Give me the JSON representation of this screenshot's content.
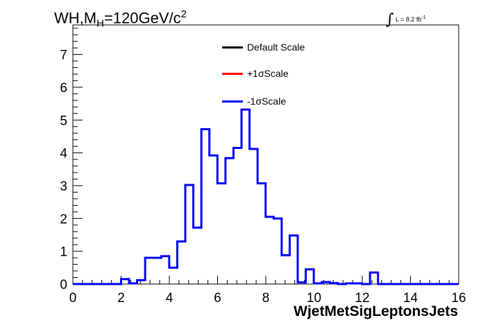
{
  "title": {
    "main": "WH,M",
    "sub": "H",
    "rest": "=120GeV/c",
    "sup": "2"
  },
  "lumi": {
    "symbol": "∫",
    "text": "L = 8.2 fb",
    "sup": "-1"
  },
  "legend": [
    {
      "label": "Default Scale",
      "color": "#000000"
    },
    {
      "label": "+1σScale",
      "color": "#ff0000"
    },
    {
      "label": "-1σScale",
      "color": "#0000ff"
    }
  ],
  "chart_data": {
    "type": "line",
    "xlabel": "WjetMetSigLeptonsJets",
    "ylabel": "",
    "xlim": [
      0,
      16
    ],
    "ylim": [
      0,
      7.9
    ],
    "xticks": [
      0,
      2,
      4,
      6,
      8,
      10,
      12,
      14,
      16
    ],
    "yticks": [
      0,
      1,
      2,
      3,
      4,
      5,
      6,
      7
    ],
    "bin_width": 0.333,
    "bin_edges_start": 0,
    "series": [
      {
        "name": "-1σScale",
        "color": "#0000ff",
        "values": [
          0,
          0,
          0,
          0,
          0,
          0,
          0.15,
          0.02,
          0.12,
          0.8,
          0.8,
          0.85,
          0.5,
          1.3,
          3.02,
          1.72,
          4.72,
          3.92,
          3.07,
          3.84,
          4.15,
          5.32,
          4.12,
          3.07,
          2.05,
          2.0,
          0.88,
          1.48,
          0.05,
          0.45,
          0.02,
          0.06,
          0.03,
          0.0,
          0.02,
          0.02,
          0.0,
          0.35,
          0.0,
          0,
          0,
          0,
          0,
          0,
          0,
          0,
          0,
          0
        ]
      }
    ]
  }
}
